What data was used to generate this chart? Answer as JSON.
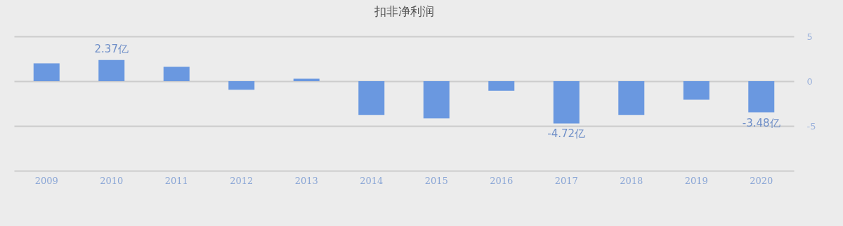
{
  "chart_data": {
    "type": "bar",
    "title": "扣非净利润",
    "categories": [
      "2009",
      "2010",
      "2011",
      "2012",
      "2013",
      "2014",
      "2015",
      "2016",
      "2017",
      "2018",
      "2019",
      "2020"
    ],
    "values": [
      2.0,
      2.37,
      1.6,
      -0.96,
      0.27,
      -3.77,
      -4.16,
      -1.08,
      -4.72,
      -3.77,
      -2.07,
      -3.48
    ],
    "value_labels": [
      null,
      "2.37亿",
      null,
      null,
      null,
      null,
      null,
      null,
      "-4.72亿",
      null,
      null,
      "-3.48亿"
    ],
    "color": "#6a98e0",
    "ylim": [
      -10,
      5
    ],
    "yticks": [
      5,
      0,
      -5,
      {
        "value": -10,
        "label": null
      }
    ],
    "grid": "y"
  }
}
